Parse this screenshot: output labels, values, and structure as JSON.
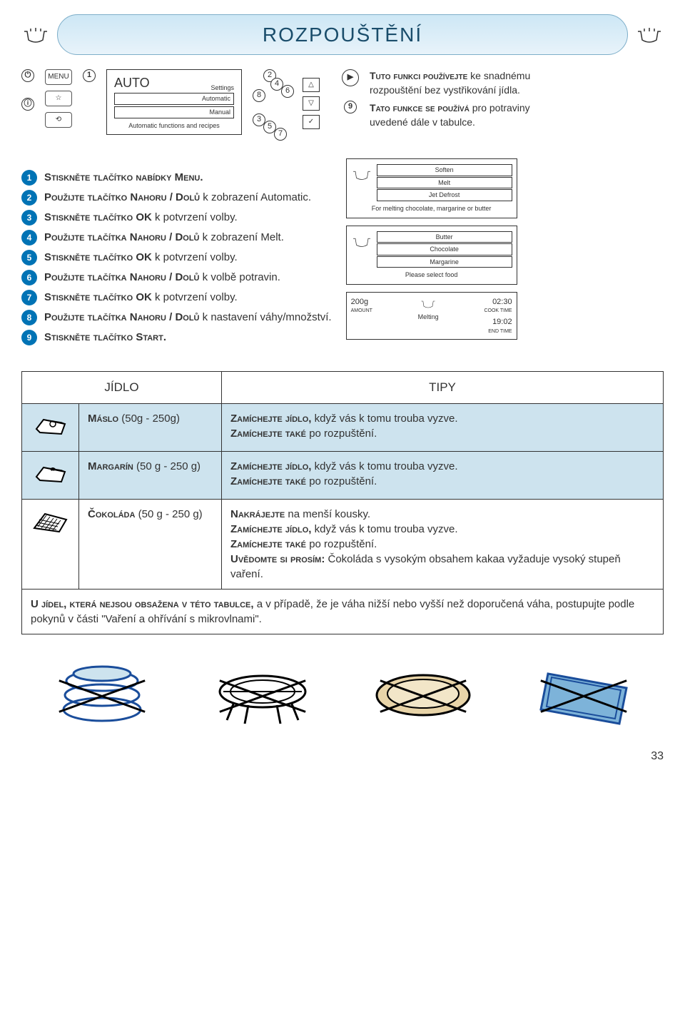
{
  "title": "ROZPOUŠTĚNÍ",
  "controlPanel": {
    "menu_label": "MENU",
    "auto_label": "AUTO",
    "settings_header": "Settings",
    "opt_automatic": "Automatic",
    "opt_manual": "Manual",
    "footer": "Automatic functions and recipes"
  },
  "navNumbers": {
    "n1": "1",
    "n2": "2",
    "n3": "3",
    "n4": "4",
    "n5": "5",
    "n6": "6",
    "n7": "7",
    "n8": "8",
    "n9": "9"
  },
  "introLine1a": "Tuto funkci používejte",
  "introLine1b": " ke snadnému rozpouštění bez vystřikování jídla.",
  "introLine2a": "Tato funkce se používá",
  "introLine2b": " pro potraviny uvedené dále v tabulce.",
  "steps": [
    {
      "n": "1",
      "bold": "Stiskněte tlačítko nabídky Menu.",
      "rest": ""
    },
    {
      "n": "2",
      "bold": "Použijte tlačítko Nahoru / Dolů",
      "rest": " k zobrazení Automatic."
    },
    {
      "n": "3",
      "bold": "Stiskněte tlačítko OK",
      "rest": " k potvrzení volby."
    },
    {
      "n": "4",
      "bold": "Použijte tlačítka Nahoru / Dolů",
      "rest": " k zobrazení Melt."
    },
    {
      "n": "5",
      "bold": "Stiskněte tlačítko OK",
      "rest": " k potvrzení volby."
    },
    {
      "n": "6",
      "bold": "Použijte tlačítka Nahoru / Dolů",
      "rest": " k volbě potravin."
    },
    {
      "n": "7",
      "bold": "Stiskněte tlačítko OK",
      "rest": " k potvrzení volby."
    },
    {
      "n": "8",
      "bold": "Použijte tlačítka Nahoru / Dolů",
      "rest": " k nastavení váhy/množství."
    },
    {
      "n": "9",
      "bold": "Stiskněte tlačítko Start.",
      "rest": ""
    }
  ],
  "displays": {
    "d1": {
      "opt1": "Soften",
      "opt2": "Melt",
      "opt3": "Jet Defrost",
      "footer": "For melting chocolate, margarine or butter"
    },
    "d2": {
      "opt1": "Butter",
      "opt2": "Chocolate",
      "opt3": "Margarine",
      "footer": "Please select food"
    },
    "d3": {
      "amount_val": "200g",
      "amount_lbl": "AMOUNT",
      "status": "Melting",
      "cook_val": "02:30",
      "cook_lbl": "COOK TIME",
      "end_val": "19:02",
      "end_lbl": "END TIME"
    }
  },
  "table": {
    "header_food": "JÍDLO",
    "header_tips": "TIPY",
    "rows": [
      {
        "food_bold": "Máslo",
        "food_rest": " (50g - 250g)",
        "tips": [
          {
            "b": "Zamíchejte jídlo,",
            "r": " když vás k tomu trouba vyzve."
          },
          {
            "b": "Zamíchejte také",
            "r": " po rozpuštění."
          }
        ]
      },
      {
        "food_bold": "Margarín",
        "food_rest": " (50 g - 250 g)",
        "tips": [
          {
            "b": "Zamíchejte jídlo,",
            "r": " když vás k tomu trouba vyzve."
          },
          {
            "b": "Zamíchejte také",
            "r": " po rozpuštění."
          }
        ]
      },
      {
        "food_bold": "Čokoláda",
        "food_rest": " (50 g - 250 g)",
        "tips": [
          {
            "b": "Nakrájejte",
            "r": "  na menší kousky."
          },
          {
            "b": "Zamíchejte jídlo,",
            "r": " když vás k tomu trouba vyzve."
          },
          {
            "b": "Zamíchejte také",
            "r": " po rozpuštění."
          },
          {
            "b": "Uvědomte si prosím:",
            "r": " Čokoláda s vysokým obsahem kakaa vyžaduje vysoký stupeň vaření."
          }
        ]
      }
    ],
    "footer_bold": "U jídel, která nejsou obsažena v této tabulce,",
    "footer_rest": " a v případě, že je váha nižší nebo vyšší než doporučená váha, postupujte podle pokynů v části \"Vaření a ohřívání s mikrovlnami\"."
  },
  "page": "33",
  "colors": {
    "accent": "#0073b5",
    "row_highlight": "#cde3ee"
  }
}
